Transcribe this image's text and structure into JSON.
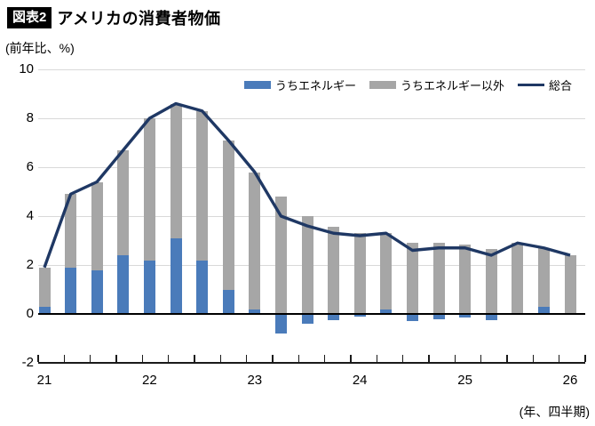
{
  "header": {
    "badge": "図表2",
    "title": "アメリカの消費者物価"
  },
  "y_axis_unit_label": "(前年比、%)",
  "x_axis_note": "(年、四半期)",
  "colors": {
    "energy_bar": "#4a7bba",
    "non_energy_bar": "#a6a6a6",
    "total_line": "#1f3864",
    "gridline": "#d9d9d9",
    "axis": "#1a1a1a"
  },
  "legend": [
    {
      "label": "うちエネルギー",
      "type": "bar",
      "color": "#4a7bba"
    },
    {
      "label": "うちエネルギー以外",
      "type": "bar",
      "color": "#a6a6a6"
    },
    {
      "label": "総合",
      "type": "line",
      "color": "#1f3864"
    }
  ],
  "chart_data": {
    "type": "bar",
    "subtype": "stacked-contribution-bars-with-line",
    "x": [
      "21Q1",
      "21Q2",
      "21Q3",
      "21Q4",
      "22Q1",
      "22Q2",
      "22Q3",
      "22Q4",
      "23Q1",
      "23Q2",
      "23Q3",
      "23Q4",
      "24Q1",
      "24Q2",
      "24Q3",
      "24Q4",
      "25Q1",
      "25Q2",
      "25Q3",
      "25Q4",
      "26Q1"
    ],
    "x_tick_years": [
      "21",
      "22",
      "23",
      "24",
      "25",
      "26"
    ],
    "series": [
      {
        "name": "うちエネルギー",
        "type": "bar",
        "color": "#4a7bba",
        "values": [
          0.3,
          1.9,
          1.8,
          2.4,
          2.2,
          3.1,
          2.2,
          1.0,
          0.2,
          -0.8,
          -0.4,
          -0.25,
          -0.1,
          0.2,
          -0.3,
          -0.2,
          -0.15,
          -0.25,
          0.0,
          0.3,
          0.0
        ]
      },
      {
        "name": "うちエネルギー以外",
        "type": "bar",
        "color": "#a6a6a6",
        "values": [
          1.6,
          3.0,
          3.6,
          4.3,
          5.8,
          5.5,
          6.1,
          6.1,
          5.6,
          4.8,
          4.0,
          3.55,
          3.3,
          3.1,
          2.9,
          2.9,
          2.85,
          2.65,
          2.9,
          2.4,
          2.4
        ]
      },
      {
        "name": "総合",
        "type": "line",
        "color": "#1f3864",
        "values": [
          1.9,
          4.9,
          5.4,
          6.7,
          8.0,
          8.6,
          8.3,
          7.1,
          5.8,
          4.0,
          3.6,
          3.3,
          3.2,
          3.3,
          2.6,
          2.7,
          2.7,
          2.4,
          2.9,
          2.7,
          2.4
        ]
      }
    ],
    "title": "アメリカの消費者物価",
    "xlabel": "(年、四半期)",
    "ylabel": "(前年比、%)",
    "ylim": [
      -2,
      10
    ],
    "yticks": [
      -2,
      0,
      2,
      4,
      6,
      8,
      10
    ],
    "grid": true,
    "legend_position": "top-right-inside"
  }
}
